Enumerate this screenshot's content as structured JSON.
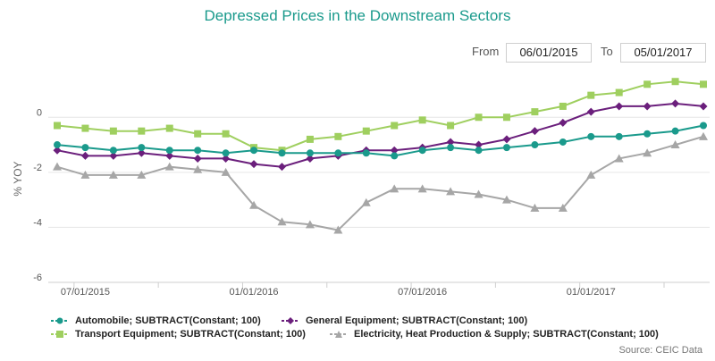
{
  "header": {
    "title": "Depressed Prices in the Downstream Sectors",
    "from_label": "From",
    "from_value": "06/01/2015",
    "to_label": "To",
    "to_value": "05/01/2017"
  },
  "source": "Source: CEIC Data",
  "colors": {
    "title": "#1a9a8c",
    "automobile": "#1a9a8c",
    "general_equipment": "#6b1f7c",
    "transport_equipment": "#9fcf5f",
    "electricity": "#a6a6a6",
    "grid": "#e6e6e6"
  },
  "chart_data": {
    "type": "line",
    "title": "Depressed Prices in the Downstream Sectors",
    "ylabel": "% YOY",
    "xlabel": "",
    "ylim": [
      -6,
      1.6
    ],
    "yticks": [
      0,
      -2,
      -4,
      -6
    ],
    "x": [
      "2015-06",
      "2015-07",
      "2015-08",
      "2015-09",
      "2015-10",
      "2015-11",
      "2015-12",
      "2016-01",
      "2016-02",
      "2016-03",
      "2016-04",
      "2016-05",
      "2016-06",
      "2016-07",
      "2016-08",
      "2016-09",
      "2016-10",
      "2016-11",
      "2016-12",
      "2017-01",
      "2017-02",
      "2017-03",
      "2017-04",
      "2017-05"
    ],
    "xtick_labels": [
      {
        "index": 1,
        "label": "07/01/2015"
      },
      {
        "index": 7,
        "label": "01/01/2016"
      },
      {
        "index": 13,
        "label": "07/01/2016"
      },
      {
        "index": 19,
        "label": "01/01/2017"
      }
    ],
    "series": [
      {
        "key": "transport_equipment",
        "name": "Transport Equipment; SUBTRACT(Constant; 100)",
        "marker": "square",
        "values": [
          -0.3,
          -0.4,
          -0.5,
          -0.5,
          -0.4,
          -0.6,
          -0.6,
          -1.1,
          -1.2,
          -0.8,
          -0.7,
          -0.5,
          -0.3,
          -0.1,
          -0.3,
          0.0,
          0.0,
          0.2,
          0.4,
          0.8,
          0.9,
          1.2,
          1.3,
          1.2
        ]
      },
      {
        "key": "general_equipment",
        "name": "General Equipment; SUBTRACT(Constant; 100)",
        "marker": "diamond",
        "values": [
          -1.2,
          -1.4,
          -1.4,
          -1.3,
          -1.4,
          -1.5,
          -1.5,
          -1.7,
          -1.8,
          -1.5,
          -1.4,
          -1.2,
          -1.2,
          -1.1,
          -0.9,
          -1.0,
          -0.8,
          -0.5,
          -0.2,
          0.2,
          0.4,
          0.4,
          0.5,
          0.4
        ]
      },
      {
        "key": "automobile",
        "name": "Automobile; SUBTRACT(Constant; 100)",
        "marker": "circle",
        "values": [
          -1.0,
          -1.1,
          -1.2,
          -1.1,
          -1.2,
          -1.2,
          -1.3,
          -1.2,
          -1.3,
          -1.3,
          -1.3,
          -1.3,
          -1.4,
          -1.2,
          -1.1,
          -1.2,
          -1.1,
          -1.0,
          -0.9,
          -0.7,
          -0.7,
          -0.6,
          -0.5,
          -0.3
        ]
      },
      {
        "key": "electricity",
        "name": "Electricity, Heat Production & Supply; SUBTRACT(Constant; 100)",
        "marker": "triangle",
        "values": [
          -1.8,
          -2.1,
          -2.1,
          -2.1,
          -1.8,
          -1.9,
          -2.0,
          -3.2,
          -3.8,
          -3.9,
          -4.1,
          -3.1,
          -2.6,
          -2.6,
          -2.7,
          -2.8,
          -3.0,
          -3.3,
          -3.3,
          -2.1,
          -1.5,
          -1.3,
          -1.0,
          -0.7
        ]
      }
    ],
    "legend_order": [
      "automobile",
      "general_equipment",
      "transport_equipment",
      "electricity"
    ],
    "legend_placement": "bottom",
    "grid": "y"
  }
}
